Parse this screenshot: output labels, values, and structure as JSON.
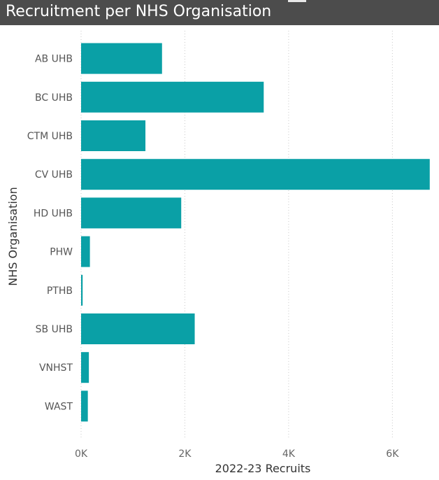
{
  "header": {
    "title": "Recruitment per NHS Organisation",
    "bar_color": "#4c4c4c"
  },
  "chart_data": {
    "type": "bar",
    "orientation": "horizontal",
    "title": "Recruitment per NHS Organisation",
    "xlabel": "2022-23 Recruits",
    "ylabel": "NHS Organisation",
    "categories": [
      "AB UHB",
      "BC UHB",
      "CTM UHB",
      "CV UHB",
      "HD UHB",
      "PHW",
      "PTHB",
      "SB UHB",
      "VNHST",
      "WAST"
    ],
    "values": [
      1560,
      3520,
      1240,
      6720,
      1930,
      170,
      30,
      2190,
      150,
      130
    ],
    "xlim": [
      0,
      6750
    ],
    "x_ticks": [
      0,
      2000,
      4000,
      6000
    ],
    "x_tick_labels": [
      "0K",
      "2K",
      "4K",
      "6K"
    ],
    "grid": "vertical-dotted",
    "bar_color": "#0aa0a6"
  }
}
